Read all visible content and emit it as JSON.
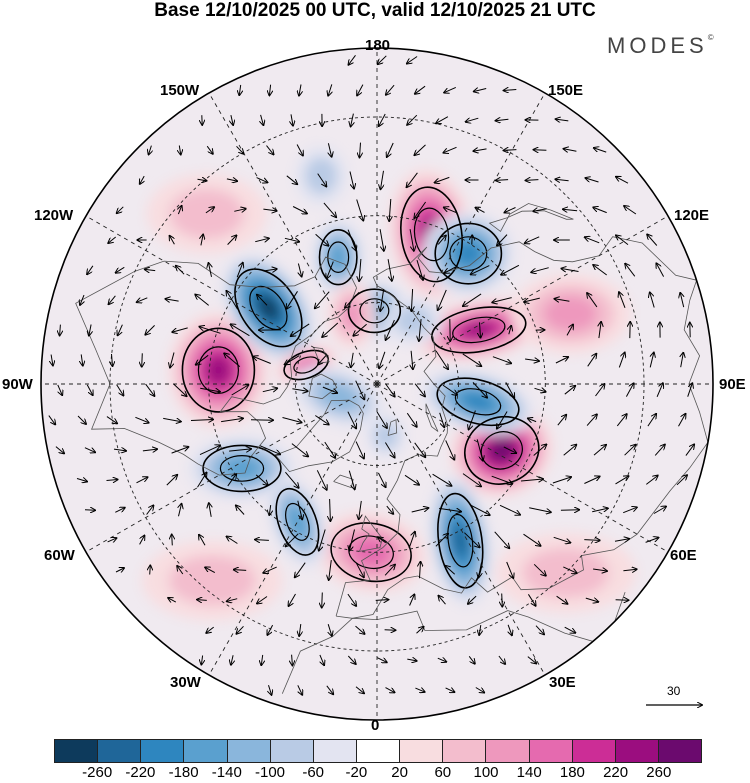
{
  "title": "Base 12/10/2025 00 UTC, valid 12/10/2025 21 UTC",
  "brand": "MODES",
  "brand_mark": "©",
  "longitude_labels": {
    "top": "180",
    "bottom": "0",
    "left": "90W",
    "right": "90E",
    "upper_left_outer": "150W",
    "upper_left": "120W",
    "upper_right_outer": "150E",
    "upper_right": "120E",
    "lower_left": "60W",
    "lower_left_outer": "30W",
    "lower_right": "60E",
    "lower_right_outer": "30E"
  },
  "vector_scale_label": "30",
  "colorbar": {
    "colors": [
      "#0d3a5c",
      "#1f6699",
      "#2e86bf",
      "#5aa0cf",
      "#8ab6dc",
      "#b9cbe5",
      "#e3e4f1",
      "#ffffff",
      "#f8dde0",
      "#f3bdcd",
      "#ee98bd",
      "#e56aaf",
      "#cc2d96",
      "#9b0d7f",
      "#6b0a6e"
    ],
    "tick_labels": [
      "-260",
      "-220",
      "-180",
      "-140",
      "-100",
      "-60",
      "-20",
      "20",
      "60",
      "100",
      "140",
      "180",
      "220",
      "260"
    ]
  },
  "anomalies": [
    {
      "lon": 160,
      "lat": 52,
      "value": 240,
      "rx": 42,
      "ry": 66,
      "rot": -8
    },
    {
      "lon": -95,
      "lat": 52,
      "value": 240,
      "rx": 50,
      "ry": 58,
      "rot": 0
    },
    {
      "lon": 62,
      "lat": 56,
      "value": 270,
      "rx": 52,
      "ry": 46,
      "rot": -20
    },
    {
      "lon": 118,
      "lat": 62,
      "value": 220,
      "rx": 66,
      "ry": 30,
      "rot": -10
    },
    {
      "lon": -2,
      "lat": 50,
      "value": 160,
      "rx": 56,
      "ry": 40,
      "rot": 10
    },
    {
      "lon": -125,
      "lat": 58,
      "value": -270,
      "rx": 38,
      "ry": 60,
      "rot": -35
    },
    {
      "lon": 145,
      "lat": 52,
      "value": -200,
      "rx": 46,
      "ry": 42,
      "rot": 0
    },
    {
      "lon": 80,
      "lat": 65,
      "value": -200,
      "rx": 58,
      "ry": 30,
      "rot": 15
    },
    {
      "lon": 28,
      "lat": 48,
      "value": -240,
      "rx": 30,
      "ry": 66,
      "rot": -8
    },
    {
      "lon": -58,
      "lat": 52,
      "value": -170,
      "rx": 54,
      "ry": 32,
      "rot": 0
    },
    {
      "lon": -30,
      "lat": 52,
      "value": -150,
      "rx": 26,
      "ry": 48,
      "rot": -20
    },
    {
      "lon": -163,
      "lat": 58,
      "value": -150,
      "rx": 26,
      "ry": 38,
      "rot": 0
    },
    {
      "lon": -178,
      "lat": 72,
      "value": -160,
      "rx": 36,
      "ry": 30,
      "rot": 0
    },
    {
      "lon": 150,
      "lat": 72,
      "value": -90,
      "rx": 30,
      "ry": 24,
      "rot": 0
    },
    {
      "lon": -160,
      "lat": 72,
      "value": 120,
      "rx": 24,
      "ry": 34,
      "rot": 0
    },
    {
      "lon": -105,
      "lat": 72,
      "value": 140,
      "rx": 32,
      "ry": 18,
      "rot": -20
    },
    {
      "lon": -72,
      "lat": 80,
      "value": -110,
      "rx": 48,
      "ry": 28,
      "rot": 20
    },
    {
      "lon": 10,
      "lat": 77,
      "value": -90,
      "rx": 20,
      "ry": 22,
      "rot": 0
    },
    {
      "lon": -165,
      "lat": 40,
      "value": -70,
      "rx": 26,
      "ry": 30,
      "rot": 0
    },
    {
      "lon": 110,
      "lat": 42,
      "value": 100,
      "rx": 60,
      "ry": 40,
      "rot": 0
    },
    {
      "lon": -40,
      "lat": 32,
      "value": 60,
      "rx": 70,
      "ry": 40,
      "rot": 0
    },
    {
      "lon": 45,
      "lat": 30,
      "value": 80,
      "rx": 70,
      "ry": 40,
      "rot": 0
    },
    {
      "lon": -135,
      "lat": 35,
      "value": 70,
      "rx": 60,
      "ry": 40,
      "rot": 0
    }
  ]
}
